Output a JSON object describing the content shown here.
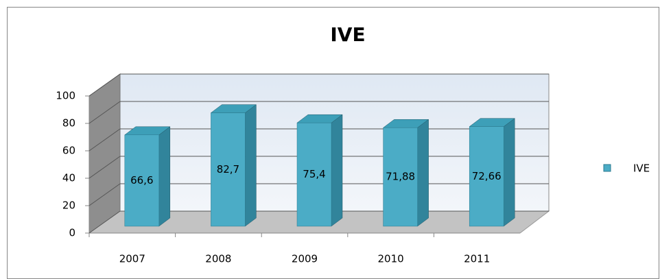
{
  "chart_data": {
    "type": "bar3d",
    "title": "IVE",
    "categories": [
      "2007",
      "2008",
      "2009",
      "2010",
      "2011"
    ],
    "series": [
      {
        "name": "IVE",
        "color": "#4bacc6",
        "values": [
          66.6,
          82.7,
          75.4,
          71.88,
          72.66
        ],
        "value_labels": [
          "66,6",
          "82,7",
          "75,4",
          "71,88",
          "72,66"
        ]
      }
    ],
    "ylim": [
      0,
      100
    ],
    "yticks": [
      0,
      20,
      40,
      60,
      80,
      100
    ],
    "grid": true,
    "legend": "right"
  }
}
